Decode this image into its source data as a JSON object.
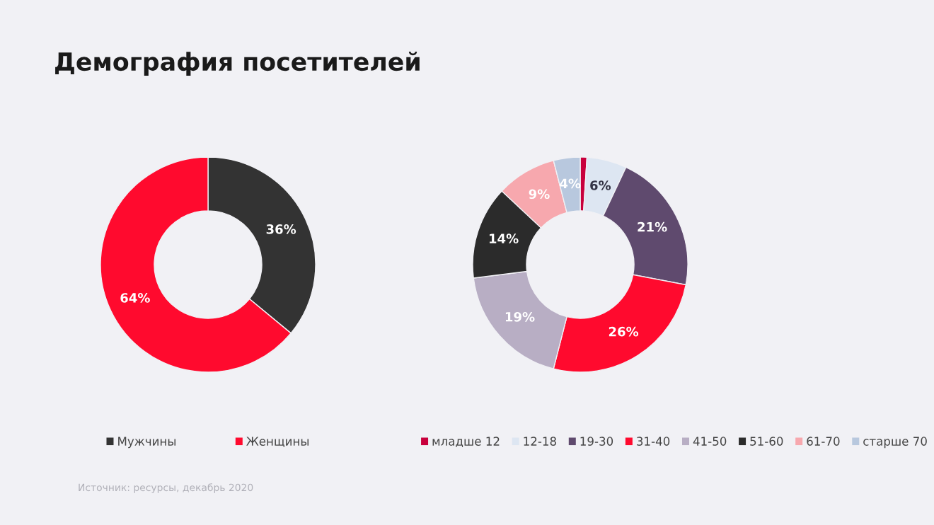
{
  "chart_data": [
    {
      "type": "donut",
      "title": "Демография посетителей",
      "categories": [
        "Мужчины",
        "Женщины"
      ],
      "values": [
        36,
        64
      ],
      "colors": [
        "#333333",
        "#ff0a2e"
      ],
      "value_labels": [
        "36%",
        "64%"
      ],
      "legend": "bottom",
      "annotations": [
        "Источник: ресурсы, декабрь 2020"
      ]
    },
    {
      "type": "donut",
      "categories": [
        "младше 12",
        "12-18",
        "19-30",
        "31-40",
        "41-50",
        "51-60",
        "61-70",
        "старше 70"
      ],
      "values": [
        1,
        6,
        21,
        26,
        19,
        14,
        9,
        4
      ],
      "colors": [
        "#c8003c",
        "#dde6f2",
        "#5f4a6e",
        "#ff0a2e",
        "#b8aec4",
        "#2b2b2b",
        "#f7a8ae",
        "#b8c8de"
      ],
      "value_labels": [
        null,
        "6%",
        "21%",
        "26%",
        "19%",
        "14%",
        "9%",
        "4%"
      ],
      "legend": "bottom"
    }
  ]
}
